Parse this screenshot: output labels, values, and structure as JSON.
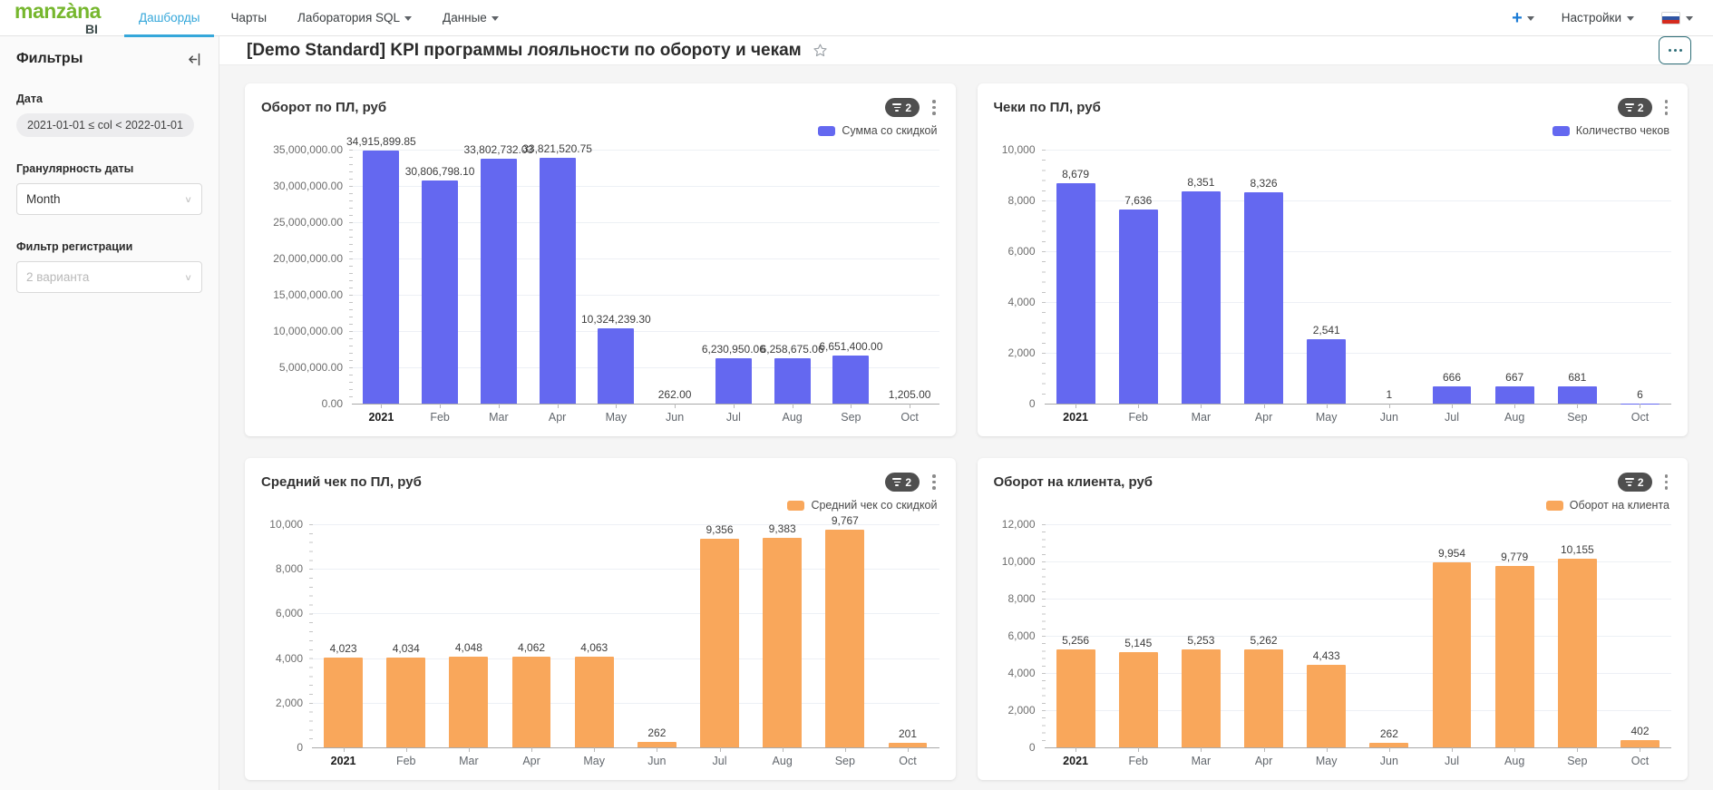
{
  "navbar": {
    "logo_main": "manzàna",
    "logo_sub": "BI",
    "items": [
      {
        "label": "Дашборды",
        "active": true,
        "dropdown": false
      },
      {
        "label": "Чарты",
        "active": false,
        "dropdown": false
      },
      {
        "label": "Лаборатория SQL",
        "active": false,
        "dropdown": true
      },
      {
        "label": "Данные",
        "active": false,
        "dropdown": true
      }
    ],
    "plus_label": "+",
    "settings_label": "Настройки",
    "flag": "russia-flag"
  },
  "sidebar": {
    "title": "Фильтры",
    "date_label": "Дата",
    "date_value": "2021-01-01 ≤ col < 2022-01-01",
    "granularity_label": "Гранулярность даты",
    "granularity_value": "Month",
    "registration_label": "Фильтр регистрации",
    "registration_value": "2 варианта"
  },
  "page": {
    "title": "[Demo Standard] KPI программы лояльности по обороту и чекам"
  },
  "colors": {
    "purple_series": "#6468f0",
    "orange_series": "#f9a75b",
    "accent_blue": "#35a7da",
    "logo_green": "#76b72e",
    "badge_bg": "#4f4f4f",
    "more_button_teal": "#2e6e78"
  },
  "chart_data": [
    {
      "type": "bar",
      "title": "Оборот по ПЛ, руб",
      "legend": "Сумма со скидкой",
      "color": "#6468f0",
      "badge": "2",
      "categories": [
        "2021",
        "Feb",
        "Mar",
        "Apr",
        "May",
        "Jun",
        "Jul",
        "Aug",
        "Sep",
        "Oct"
      ],
      "values": [
        34915899.85,
        30806798.1,
        33802732.03,
        33821520.75,
        10324239.3,
        262.0,
        6230950.06,
        6258675.06,
        6651400.0,
        1205.0
      ],
      "labels": [
        "34,915,899.85",
        "30,806,798.10",
        "33,802,732.03",
        "33,821,520.75",
        "10,324,239.30",
        "262.00",
        "6,230,950.06",
        "6,258,675.06",
        "6,651,400.00",
        "1,205.00"
      ],
      "y_ticks": [
        "35,000,000.00",
        "30,000,000.00",
        "25,000,000.00",
        "20,000,000.00",
        "15,000,000.00",
        "10,000,000.00",
        "5,000,000.00",
        "0.00"
      ],
      "ylim": [
        0,
        35000000
      ],
      "xlabel": "",
      "ylabel": "",
      "grid": true,
      "legend_position": "top-right"
    },
    {
      "type": "bar",
      "title": "Чеки по ПЛ, руб",
      "legend": "Количество чеков",
      "color": "#6468f0",
      "badge": "2",
      "categories": [
        "2021",
        "Feb",
        "Mar",
        "Apr",
        "May",
        "Jun",
        "Jul",
        "Aug",
        "Sep",
        "Oct"
      ],
      "values": [
        8679,
        7636,
        8351,
        8326,
        2541,
        1,
        666,
        667,
        681,
        6
      ],
      "labels": [
        "8,679",
        "7,636",
        "8,351",
        "8,326",
        "2,541",
        "1",
        "666",
        "667",
        "681",
        "6"
      ],
      "y_ticks": [
        "10,000",
        "8,000",
        "6,000",
        "4,000",
        "2,000",
        "0"
      ],
      "ylim": [
        0,
        10000
      ],
      "xlabel": "",
      "ylabel": "",
      "grid": true,
      "legend_position": "top-right"
    },
    {
      "type": "bar",
      "title": "Средний чек по ПЛ, руб",
      "legend": "Средний чек со скидкой",
      "color": "#f9a75b",
      "badge": "2",
      "categories": [
        "2021",
        "Feb",
        "Mar",
        "Apr",
        "May",
        "Jun",
        "Jul",
        "Aug",
        "Sep",
        "Oct"
      ],
      "values": [
        4023,
        4034,
        4048,
        4062,
        4063,
        262,
        9356,
        9383,
        9767,
        201
      ],
      "labels": [
        "4,023",
        "4,034",
        "4,048",
        "4,062",
        "4,063",
        "262",
        "9,356",
        "9,383",
        "9,767",
        "201"
      ],
      "y_ticks": [
        "10,000",
        "8,000",
        "6,000",
        "4,000",
        "2,000",
        "0"
      ],
      "ylim": [
        0,
        10000
      ],
      "xlabel": "",
      "ylabel": "",
      "grid": true,
      "legend_position": "top-right"
    },
    {
      "type": "bar",
      "title": "Оборот на клиента, руб",
      "legend": "Оборот на клиента",
      "color": "#f9a75b",
      "badge": "2",
      "categories": [
        "2021",
        "Feb",
        "Mar",
        "Apr",
        "May",
        "Jun",
        "Jul",
        "Aug",
        "Sep",
        "Oct"
      ],
      "values": [
        5256,
        5145,
        5253,
        5262,
        4433,
        262,
        9954,
        9779,
        10155,
        402
      ],
      "labels": [
        "5,256",
        "5,145",
        "5,253",
        "5,262",
        "4,433",
        "262",
        "9,954",
        "9,779",
        "10,155",
        "402"
      ],
      "y_ticks": [
        "12,000",
        "10,000",
        "8,000",
        "6,000",
        "4,000",
        "2,000",
        "0"
      ],
      "ylim": [
        0,
        12000
      ],
      "xlabel": "",
      "ylabel": "",
      "grid": true,
      "legend_position": "top-right"
    }
  ]
}
